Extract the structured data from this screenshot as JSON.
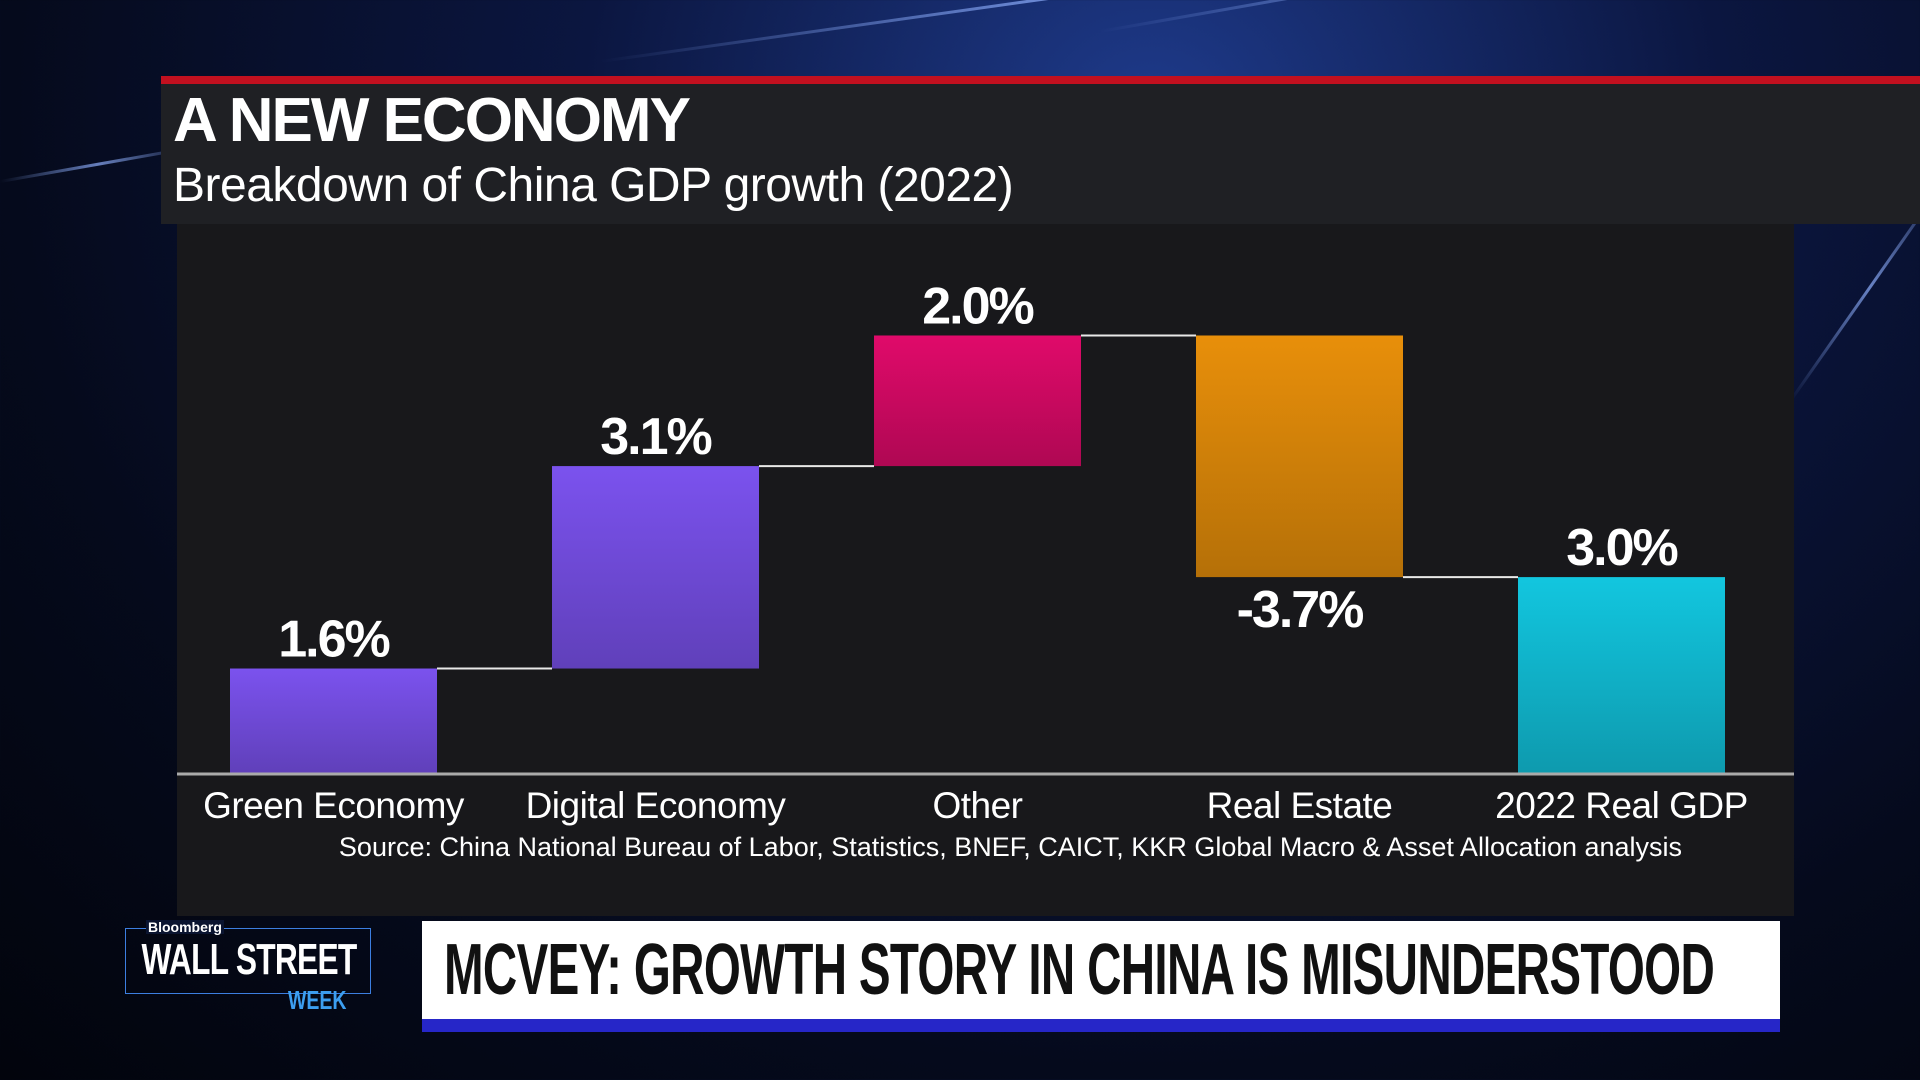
{
  "header": {
    "title": "A NEW ECONOMY",
    "subtitle": "Breakdown of China GDP growth (2022)"
  },
  "chart_data": {
    "type": "waterfall",
    "categories": [
      "Green Economy",
      "Digital Economy",
      "Other",
      "Real Estate",
      "2022 Real GDP"
    ],
    "values": [
      1.6,
      3.1,
      2.0,
      -3.7,
      3.0
    ],
    "data_labels": [
      "1.6%",
      "3.1%",
      "2.0%",
      "-3.7%",
      "3.0%"
    ],
    "total_index": 4,
    "colors": [
      "#7b52ee",
      "#7b52ee",
      "#e00a6a",
      "#e88f0a",
      "#12c6df"
    ],
    "ylim": [
      0,
      6.8
    ],
    "grid": false,
    "source": "Source: China National Bureau of Labor, Statistics, BNEF, CAICT, KKR Global Macro & Asset Allocation analysis"
  },
  "lower_third": {
    "logo_brand": "Bloomberg",
    "logo_main": "WALL STREET",
    "logo_sub": "WEEK",
    "headline": "MCVEY: GROWTH STORY IN CHINA IS MISUNDERSTOOD"
  }
}
